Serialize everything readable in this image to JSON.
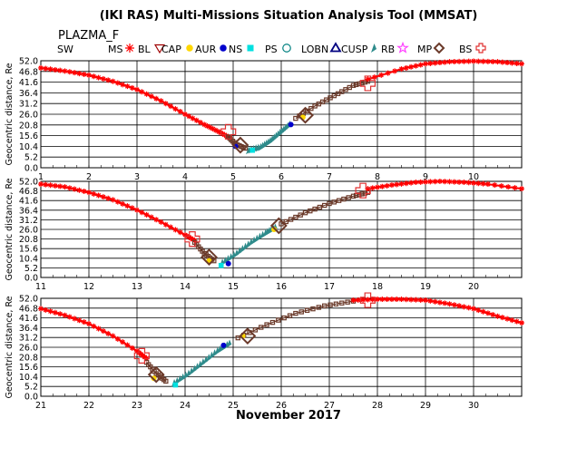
{
  "title": "(IKI RAS) Multi-Missions Situation Analysis Tool (MMSAT)",
  "mission": "PLAZMA_F",
  "footer_label": "November 2017",
  "legend": [
    {
      "label": "SW",
      "symbol": "none",
      "color": "#000000"
    },
    {
      "label": "MS",
      "symbol": "asterisk",
      "color": "#ff0000"
    },
    {
      "label": "BL",
      "symbol": "triangle-down",
      "color": "#a00000"
    },
    {
      "label": "CAP",
      "symbol": "dot",
      "color": "#ffd700"
    },
    {
      "label": "AUR",
      "symbol": "dot",
      "color": "#0000cc"
    },
    {
      "label": "NS",
      "symbol": "square",
      "color": "#00e0e0"
    },
    {
      "label": "PS",
      "symbol": "circle",
      "color": "#008080"
    },
    {
      "label": "LOBN",
      "symbol": "triangle-up",
      "color": "#000080"
    },
    {
      "label": "CUSP",
      "symbol": "arrow",
      "color": "#2e8b8b"
    },
    {
      "label": "RB",
      "symbol": "star",
      "color": "#ff40ff"
    },
    {
      "label": "MP",
      "symbol": "square-open",
      "color": "#6b3a2a"
    },
    {
      "label": "BS",
      "symbol": "plus-open",
      "color": "#e03030"
    }
  ],
  "colors": {
    "MS": "#ff0000",
    "MP": "#6b3a2a",
    "BS": "#e03030",
    "BL": "#a00000",
    "NS": "#00e0e0",
    "PS": "#008080",
    "CUSP": "#2e8b8b",
    "CAP": "#ffd700",
    "AUR": "#0000cc",
    "LOBN": "#000080"
  },
  "chart_data": [
    {
      "type": "scatter",
      "ylabel": "Geocentric distance, Re",
      "xlim": [
        1,
        11
      ],
      "ylim": [
        0,
        52
      ],
      "xticks": [
        "1",
        "2",
        "3",
        "4",
        "5",
        "6",
        "7",
        "8",
        "9",
        "10"
      ],
      "xtick_values": [
        1,
        2,
        3,
        4,
        5,
        6,
        7,
        8,
        9,
        10
      ],
      "yticks": [
        "0.0",
        "5.2",
        "10.4",
        "15.6",
        "20.8",
        "26.0",
        "31.2",
        "36.4",
        "41.6",
        "46.8",
        "52.0"
      ],
      "ytick_values": [
        0,
        5.2,
        10.4,
        15.6,
        20.8,
        26,
        31.2,
        36.4,
        41.6,
        46.8,
        52
      ],
      "series": [
        {
          "region": "MS",
          "x": [
            1,
            1.5,
            2,
            2.5,
            3,
            3.5,
            4,
            4.4,
            4.7,
            4.9
          ],
          "y": [
            48.5,
            47,
            45,
            42,
            38,
            32.5,
            26,
            21,
            17.5,
            15
          ]
        },
        {
          "region": "MP",
          "x": [
            4.9,
            5.05,
            5.25
          ],
          "y": [
            15,
            11.5,
            9.5
          ]
        },
        {
          "region": "CUSP",
          "x": [
            5.35,
            5.6,
            5.8,
            6.0,
            6.2
          ],
          "y": [
            8.5,
            10,
            13,
            17,
            21
          ]
        },
        {
          "region": "MP",
          "x": [
            6.3,
            6.7,
            7.1,
            7.5,
            7.8
          ],
          "y": [
            24,
            30,
            35,
            40,
            42
          ]
        },
        {
          "region": "MS",
          "x": [
            7.8,
            8.5,
            9,
            9.5,
            10,
            10.5,
            11
          ],
          "y": [
            43,
            48,
            50.5,
            51.5,
            51.8,
            51.5,
            50.5
          ]
        }
      ],
      "bs_crossings": [
        {
          "x": 4.9,
          "y": 17.5
        },
        {
          "x": 7.8,
          "y": 41
        }
      ],
      "mp_crossings": [
        {
          "x": 5.15,
          "y": 11
        },
        {
          "x": 6.5,
          "y": 25.5
        }
      ],
      "markers": [
        {
          "region": "NS",
          "x": 5.4,
          "y": 8.5
        },
        {
          "region": "AUR",
          "x": 5.05,
          "y": 10.4
        },
        {
          "region": "AUR",
          "x": 6.2,
          "y": 21
        },
        {
          "region": "CAP",
          "x": 6.45,
          "y": 24.5
        }
      ]
    },
    {
      "type": "scatter",
      "ylabel": "Geocentric distance, Re",
      "xlim": [
        11,
        21
      ],
      "ylim": [
        0,
        52
      ],
      "xticks": [
        "11",
        "12",
        "13",
        "14",
        "15",
        "16",
        "17",
        "18",
        "19",
        "20"
      ],
      "xtick_values": [
        11,
        12,
        13,
        14,
        15,
        16,
        17,
        18,
        19,
        20
      ],
      "yticks": [
        "0.0",
        "5.2",
        "10.4",
        "15.6",
        "20.8",
        "26.0",
        "31.2",
        "36.4",
        "41.6",
        "46.8",
        "52.0"
      ],
      "ytick_values": [
        0,
        5.2,
        10.4,
        15.6,
        20.8,
        26,
        31.2,
        36.4,
        41.6,
        46.8,
        52
      ],
      "series": [
        {
          "region": "MS",
          "x": [
            11,
            11.5,
            12,
            12.5,
            13,
            13.5,
            14,
            14.2
          ],
          "y": [
            50.5,
            49,
            46,
            42,
            36.5,
            30,
            23,
            20
          ]
        },
        {
          "region": "MP",
          "x": [
            14.2,
            14.4,
            14.6
          ],
          "y": [
            19,
            13,
            9
          ]
        },
        {
          "region": "CUSP",
          "x": [
            14.8,
            15.1,
            15.4,
            15.7,
            15.9
          ],
          "y": [
            8,
            13,
            19,
            24,
            27
          ]
        },
        {
          "region": "MP",
          "x": [
            16,
            16.5,
            17,
            17.5,
            17.8
          ],
          "y": [
            29,
            35,
            40,
            44,
            46
          ]
        },
        {
          "region": "MS",
          "x": [
            17.8,
            18.3,
            18.8,
            19.3,
            19.8,
            20.3,
            21
          ],
          "y": [
            48,
            50,
            51.5,
            52,
            51.5,
            50.5,
            48
          ]
        }
      ],
      "bs_crossings": [
        {
          "x": 14.15,
          "y": 20.8
        },
        {
          "x": 17.7,
          "y": 47
        }
      ],
      "mp_crossings": [
        {
          "x": 14.5,
          "y": 11
        },
        {
          "x": 15.95,
          "y": 28
        }
      ],
      "markers": [
        {
          "region": "NS",
          "x": 14.75,
          "y": 6.5
        },
        {
          "region": "AUR",
          "x": 14.9,
          "y": 7.5
        },
        {
          "region": "CAP",
          "x": 14.5,
          "y": 9
        },
        {
          "region": "CAP",
          "x": 15.85,
          "y": 26
        }
      ]
    },
    {
      "type": "scatter",
      "ylabel": "Geocentric distance, Re",
      "xlim": [
        21,
        31
      ],
      "ylim": [
        0,
        52
      ],
      "xticks": [
        "21",
        "22",
        "23",
        "24",
        "25",
        "26",
        "27",
        "28",
        "29",
        "30"
      ],
      "xtick_values": [
        21,
        22,
        23,
        24,
        25,
        26,
        27,
        28,
        29,
        30
      ],
      "yticks": [
        "0.0",
        "5.2",
        "10.4",
        "15.6",
        "20.8",
        "26.0",
        "31.2",
        "36.4",
        "41.6",
        "46.8",
        "52.0"
      ],
      "ytick_values": [
        0,
        5.2,
        10.4,
        15.6,
        20.8,
        26,
        31.2,
        36.4,
        41.6,
        46.8,
        52
      ],
      "series": [
        {
          "region": "MS",
          "x": [
            21,
            21.5,
            22,
            22.5,
            23,
            23.2
          ],
          "y": [
            46.5,
            43,
            38.5,
            32,
            24,
            20
          ]
        },
        {
          "region": "MP",
          "x": [
            23.2,
            23.4,
            23.6
          ],
          "y": [
            18,
            12,
            8
          ]
        },
        {
          "region": "CUSP",
          "x": [
            23.8,
            24.1,
            24.4,
            24.7,
            24.95
          ],
          "y": [
            7,
            12,
            18,
            24,
            28
          ]
        },
        {
          "region": "MP",
          "x": [
            25.1,
            25.7,
            26.3,
            26.9,
            27.5
          ],
          "y": [
            31,
            38,
            44,
            48,
            50.5
          ]
        },
        {
          "region": "MS",
          "x": [
            27.5,
            28,
            28.5,
            29,
            29.5,
            30,
            30.5,
            31
          ],
          "y": [
            51,
            51.5,
            51.5,
            51,
            49,
            46.5,
            42.5,
            39
          ]
        }
      ],
      "bs_crossings": [
        {
          "x": 23.1,
          "y": 21.5
        },
        {
          "x": 27.8,
          "y": 51
        }
      ],
      "mp_crossings": [
        {
          "x": 23.4,
          "y": 11.5
        },
        {
          "x": 25.3,
          "y": 32
        }
      ],
      "markers": [
        {
          "region": "NS",
          "x": 23.8,
          "y": 6
        },
        {
          "region": "AUR",
          "x": 24.8,
          "y": 27
        },
        {
          "region": "CAP",
          "x": 23.35,
          "y": 9.5
        },
        {
          "region": "CAP",
          "x": 25.2,
          "y": 32
        }
      ]
    }
  ]
}
